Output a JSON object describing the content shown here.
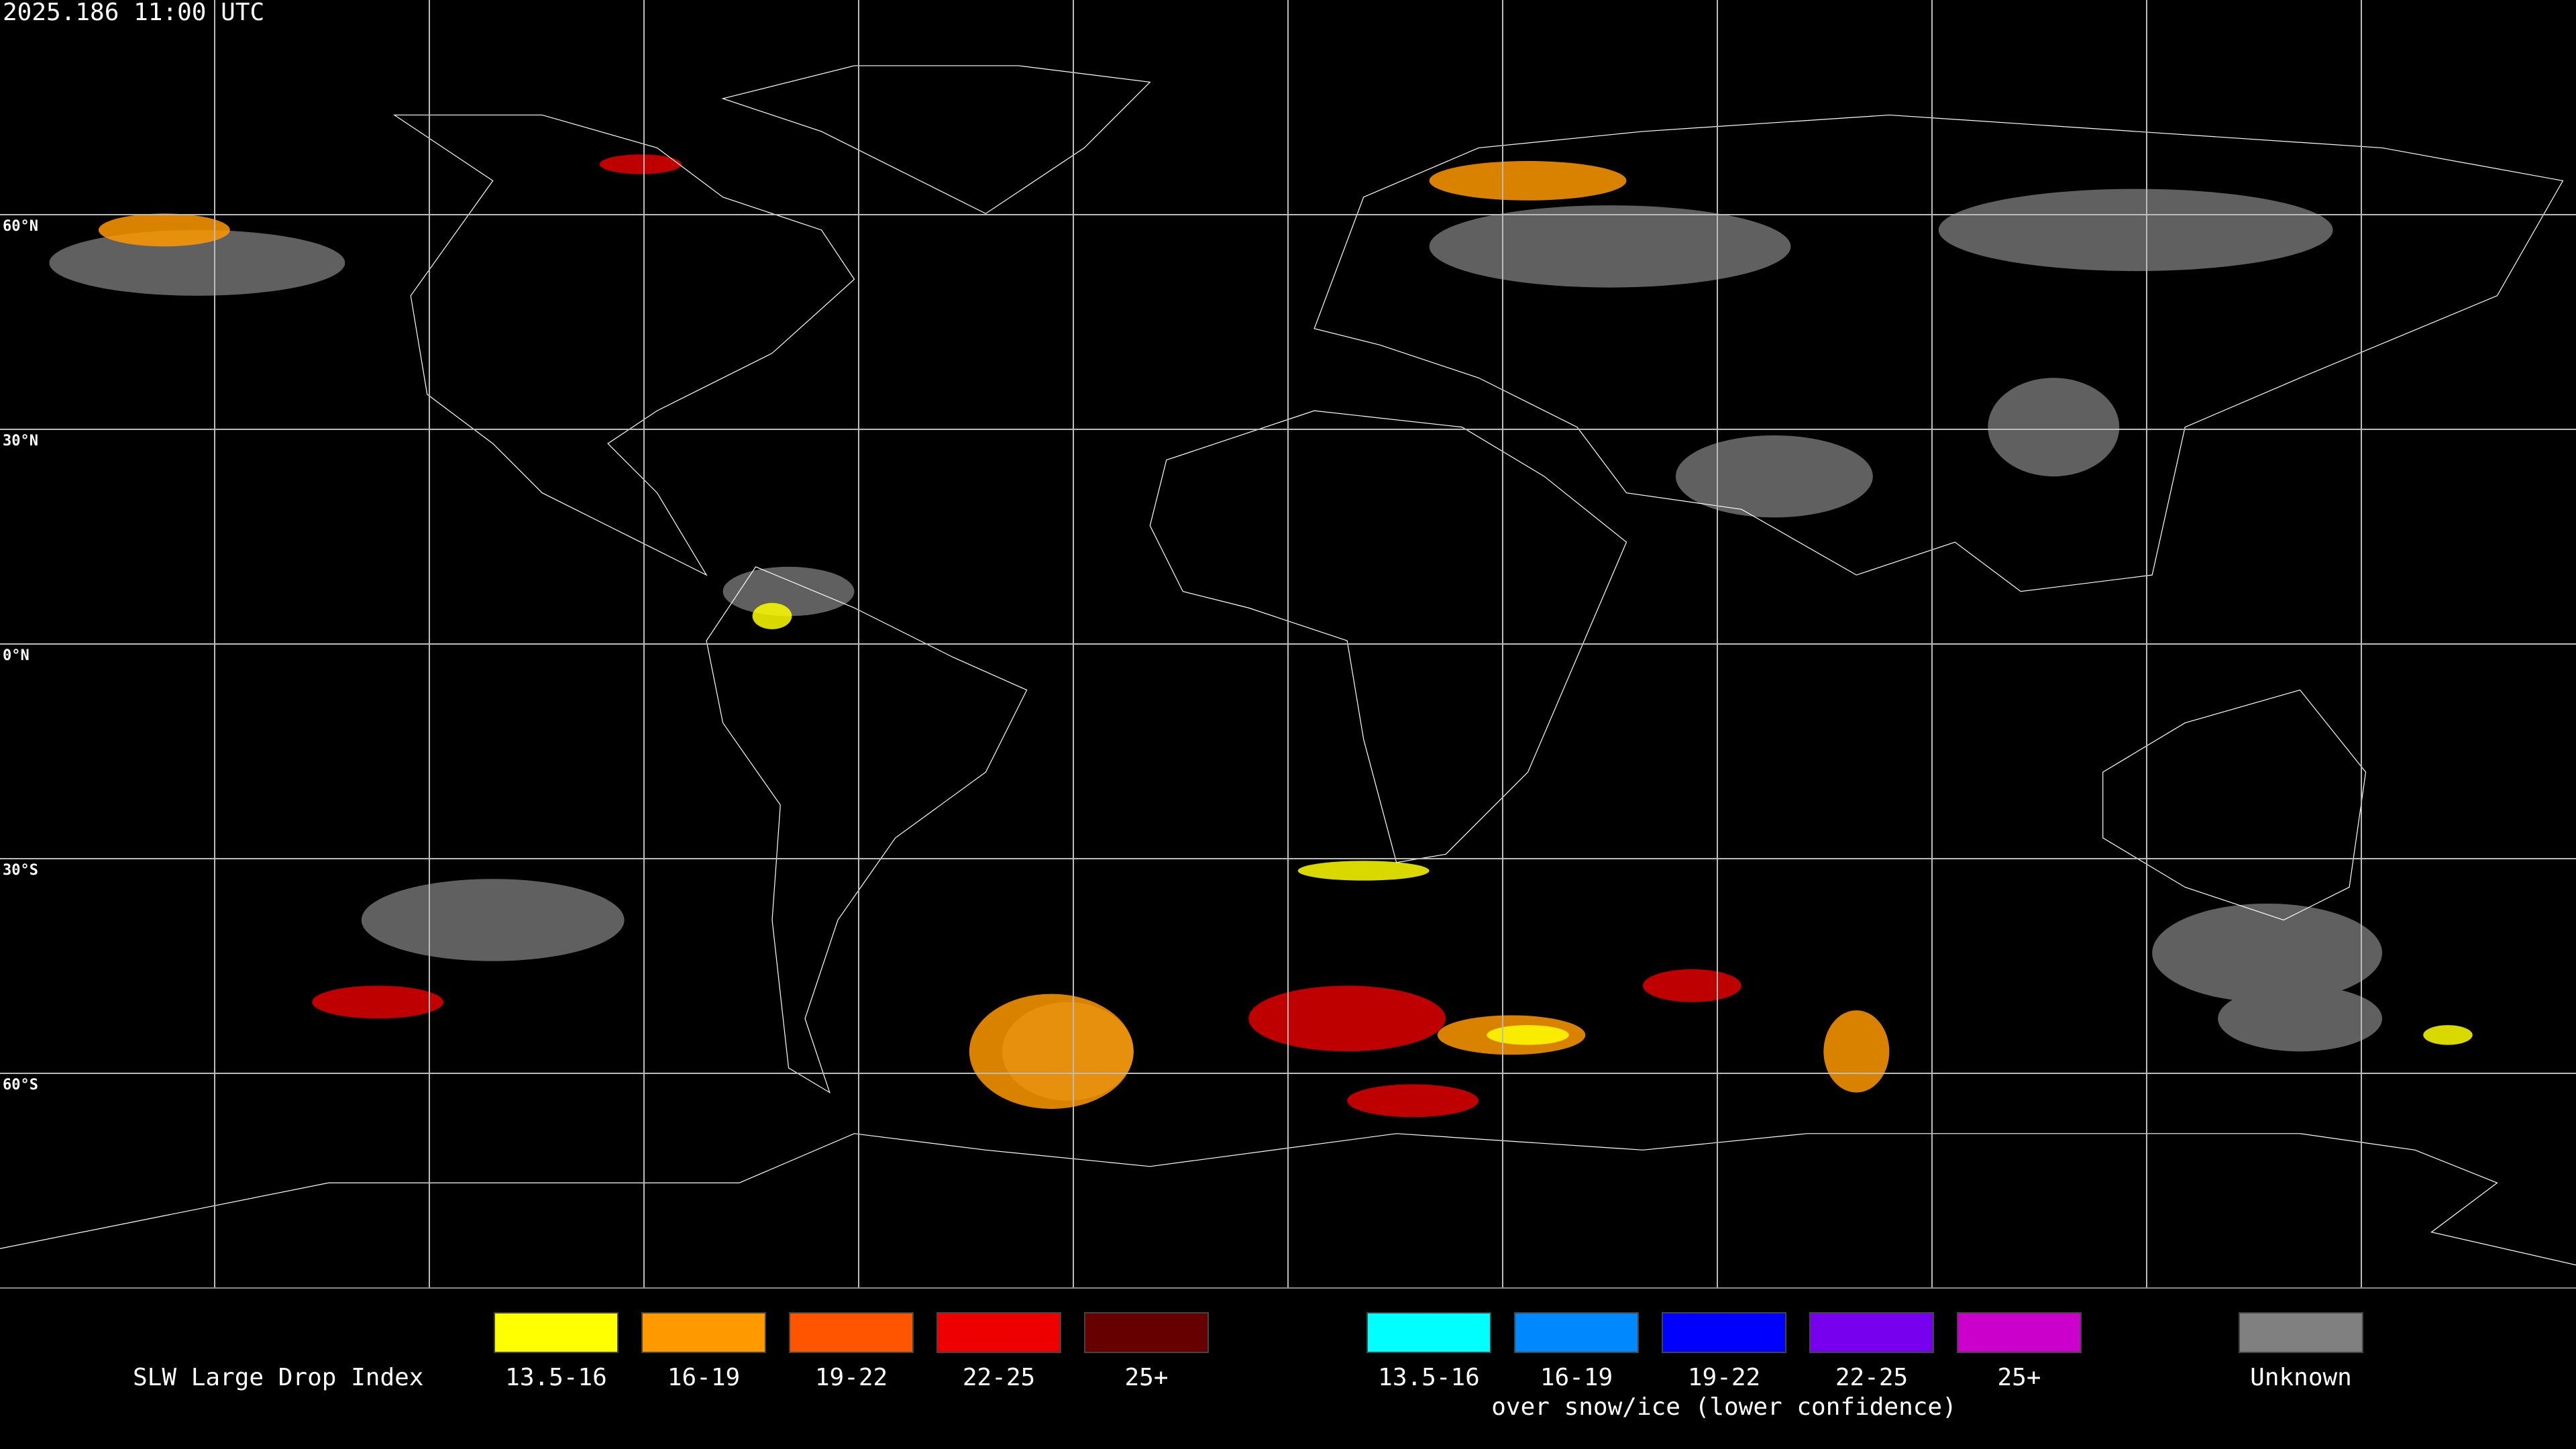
{
  "header": {
    "timestamp": "2025.186 11:00 UTC"
  },
  "map": {
    "latitude_lines": [
      {
        "value": 60,
        "label": "60°N"
      },
      {
        "value": 30,
        "label": "30°N"
      },
      {
        "value": 0,
        "label": "0°N"
      },
      {
        "value": -30,
        "label": "30°S"
      },
      {
        "value": -60,
        "label": "60°S"
      }
    ]
  },
  "legend": {
    "title": "SLW Large Drop Index",
    "groups": [
      {
        "items": [
          {
            "label": "13.5-16",
            "color": "#ffff00"
          },
          {
            "label": "16-19",
            "color": "#ff9900"
          },
          {
            "label": "19-22",
            "color": "#ff5500"
          },
          {
            "label": "22-25",
            "color": "#ee0000"
          },
          {
            "label": "25+",
            "color": "#660000"
          }
        ]
      },
      {
        "caption": "over snow/ice (lower confidence)",
        "items": [
          {
            "label": "13.5-16",
            "color": "#00ffff"
          },
          {
            "label": "16-19",
            "color": "#0088ff"
          },
          {
            "label": "19-22",
            "color": "#0000ff"
          },
          {
            "label": "22-25",
            "color": "#7700ee"
          },
          {
            "label": "25+",
            "color": "#cc00cc"
          }
        ]
      },
      {
        "items": [
          {
            "label": "Unknown",
            "color": "#808080"
          }
        ]
      }
    ]
  }
}
